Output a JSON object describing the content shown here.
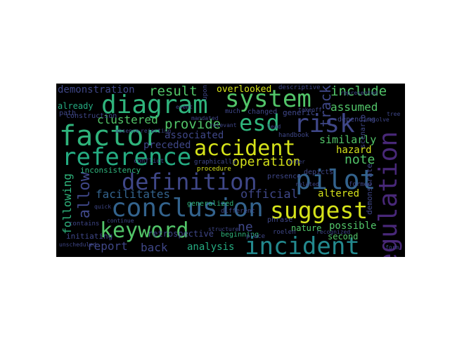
{
  "palette": {
    "background": "#000000",
    "yellow": "#d5e21a",
    "green": "#52c569",
    "teal": "#2fb47c",
    "aqua": "#25ac82",
    "cyan": "#23898e",
    "blue": "#33638d",
    "indigo": "#3f4788",
    "purple": "#482878",
    "lightgreen": "#7ad151"
  },
  "words": {
    "conclusion": "conclusion",
    "definition": "definition",
    "pilot": "pilot",
    "keyword": "keyword",
    "incident": "incident",
    "suggest": "suggest",
    "regulation": "regulation",
    "accident": "accident",
    "reference": "reference",
    "factor": "factor",
    "diagram": "diagram",
    "system": "system",
    "risk": "risk",
    "esd": "esd",
    "result": "result",
    "include": "include",
    "demonstration": "demonstration",
    "track": "track",
    "clustered": "clustered",
    "provide": "provide",
    "assumed": "assumed",
    "associated": "associated",
    "operation": "operation",
    "note": "note",
    "similarly": "similarly",
    "hazard": "hazard",
    "preceded": "preceded",
    "allow": "allow",
    "following": "following",
    "facilitates": "facilitates",
    "official": "official",
    "altered": "altered",
    "report": "report",
    "back": "back",
    "analysis": "analysis",
    "possible": "possible",
    "second": "second",
    "retrospective": "retrospective",
    "nature": "nature",
    "ne": "ne",
    "inconsistency": "inconsistency",
    "overlooked": "overlooked",
    "descriptive": "descriptive",
    "already": "already",
    "construction": "construction",
    "path": "path",
    "changed": "changed",
    "much": "much",
    "generic": "generic",
    "demonstrate": "demonstrate",
    "scenario": "scenario",
    "depending": "depending",
    "handbook": "handbook",
    "resolve": "resolve",
    "graphically": "graphically",
    "procedure": "procedure",
    "depicts": "depicts",
    "presence": "presence",
    "generalized": "generalized",
    "phrase": "phrase",
    "beginning": "beginning",
    "place": "place",
    "initiating": "initiating",
    "contains": "contains",
    "formed": "formed",
    "conflict": "conflict",
    "absence": "absence",
    "rejecting": "rejecting",
    "takeoff": "takeoff",
    "represented": "represented",
    "different": "different",
    "unscheduled": "unscheduled",
    "continue": "continue",
    "quick": "quick",
    "recognized": "recognized",
    "structure": "structure",
    "related": "related",
    "upon": "upon",
    "mandated": "mandated",
    "relevant": "relevant",
    "roelen": "roelen",
    "event": "event",
    "lead": "lead",
    "order": "order",
    "form": "form",
    "tree": "tree"
  }
}
